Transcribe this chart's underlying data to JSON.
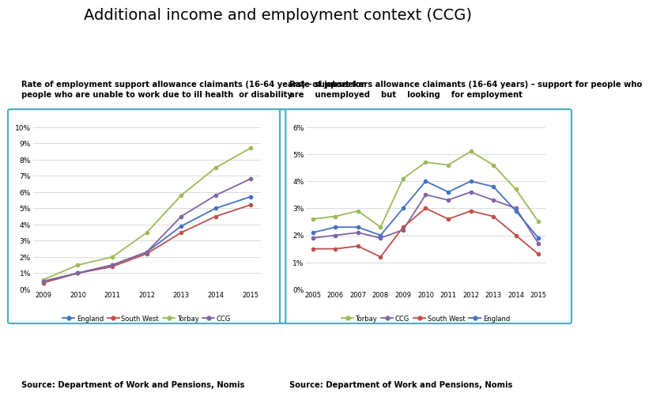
{
  "title": "Additional income and employment context (CCG)",
  "title_fontsize": 14,
  "background": "#ffffff",
  "left_subtitle": "Rate of employment support allowance claimants (16-64 years) – support for\npeople who are unable to work due to ill health  or disability",
  "right_subtitle": "Rate of jobseekers allowance claimants (16-64 years) – support for people who\nare    unemployed    but    looking    for employment",
  "chart1": {
    "years": [
      2009,
      2010,
      2011,
      2012,
      2013,
      2014,
      2015
    ],
    "England": [
      0.5,
      1.0,
      1.5,
      2.3,
      3.9,
      5.0,
      5.7
    ],
    "South_West": [
      0.4,
      1.0,
      1.4,
      2.2,
      3.5,
      4.5,
      5.2
    ],
    "Torbay": [
      0.6,
      1.5,
      2.0,
      3.5,
      5.8,
      7.5,
      8.7
    ],
    "CCG": [
      0.5,
      1.0,
      1.5,
      2.3,
      4.5,
      5.8,
      6.8
    ],
    "ylim": [
      0,
      10
    ],
    "yticks": [
      0,
      1,
      2,
      3,
      4,
      5,
      6,
      7,
      8,
      9,
      10
    ],
    "ytick_labels": [
      "0%",
      "1%",
      "2%",
      "3%",
      "4%",
      "5%",
      "6%",
      "7%",
      "8%",
      "9%",
      "10%"
    ],
    "colors": {
      "England": "#4472c4",
      "South_West": "#c0504d",
      "Torbay": "#9bbb59",
      "CCG": "#8064a2"
    },
    "legend_order": [
      "England",
      "South_West",
      "Torbay",
      "CCG"
    ],
    "legend_labels": [
      "England",
      "South West",
      "Torbay",
      "CCG"
    ]
  },
  "chart2": {
    "years": [
      2005,
      2006,
      2007,
      2008,
      2009,
      2010,
      2011,
      2012,
      2013,
      2014,
      2015
    ],
    "Torbay": [
      2.6,
      2.7,
      2.9,
      2.3,
      4.1,
      4.7,
      4.6,
      5.1,
      4.6,
      3.7,
      2.5
    ],
    "CCG": [
      1.9,
      2.0,
      2.1,
      1.9,
      2.2,
      3.5,
      3.3,
      3.6,
      3.3,
      3.0,
      1.7
    ],
    "South_West": [
      1.5,
      1.5,
      1.6,
      1.2,
      2.3,
      3.0,
      2.6,
      2.9,
      2.7,
      2.0,
      1.3
    ],
    "England": [
      2.1,
      2.3,
      2.3,
      2.0,
      3.0,
      4.0,
      3.6,
      4.0,
      3.8,
      2.9,
      1.9
    ],
    "ylim": [
      0,
      6
    ],
    "yticks": [
      0,
      1,
      2,
      3,
      4,
      5,
      6
    ],
    "ytick_labels": [
      "0%",
      "1%",
      "2%",
      "3%",
      "4%",
      "5%",
      "6%"
    ],
    "colors": {
      "Torbay": "#9bbb59",
      "CCG": "#8064a2",
      "South_West": "#c0504d",
      "England": "#4472c4"
    },
    "legend_order": [
      "Torbay",
      "CCG",
      "South_West",
      "England"
    ],
    "legend_labels": [
      "Torbay",
      "CCG",
      "South West",
      "England"
    ]
  },
  "source_text": "Source: Department of Work and Pensions, Nomis",
  "border_color": "#4BACC6",
  "border_linewidth": 1.5
}
